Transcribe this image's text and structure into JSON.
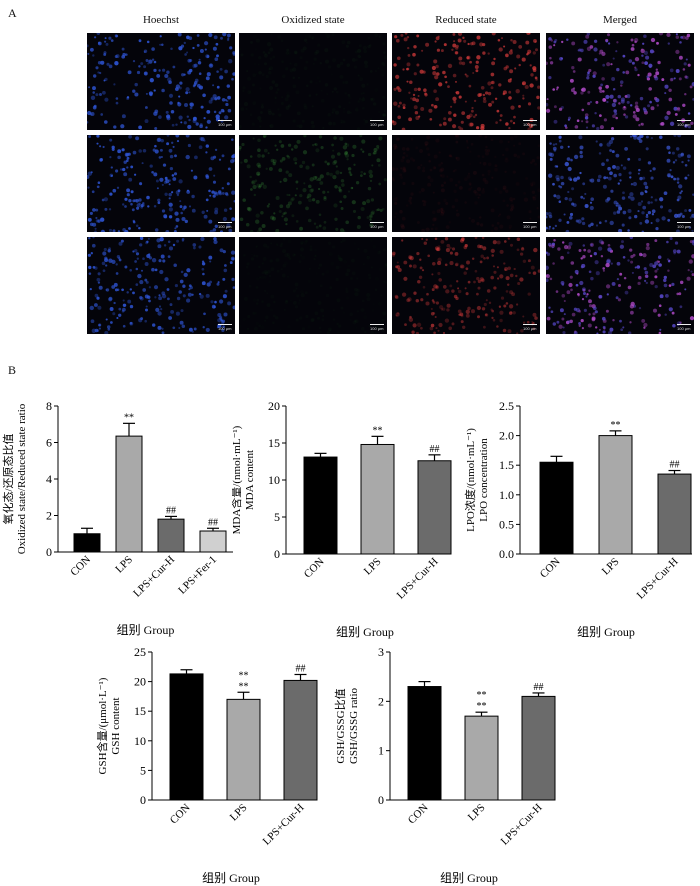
{
  "panel_a_label": "A",
  "panel_b_label": "B",
  "micro": {
    "columns": [
      "Hoechst",
      "Oxidized state",
      "Reduced state",
      "Merged"
    ],
    "scale_bar": "100 μm",
    "channel_colors": {
      "hoechst": "#2f56d8",
      "oxidized": "#3c9a3c",
      "reduced": "#d23a3a",
      "merged": "#a448c8"
    }
  },
  "chart_data": [
    {
      "type": "bar",
      "categories": [
        "CON",
        "LPS",
        "LPS+Cur-H",
        "LPS+Fer-1"
      ],
      "values": [
        1.0,
        6.35,
        1.8,
        1.15
      ],
      "errors": [
        0.3,
        0.7,
        0.15,
        0.15
      ],
      "marks": [
        "",
        "**",
        "##",
        "##"
      ],
      "ylabel_cn": "氧化态/还原态比值",
      "ylabel_en": "Oxidized state/Reduced state ratio",
      "xlabel": "组别 Group",
      "ylim": [
        0,
        8
      ],
      "yticks": [
        "0",
        "2",
        "4",
        "6",
        "8"
      ],
      "colors": [
        "#000000",
        "#a9a9a9",
        "#6b6b6b",
        "#d0d0d0"
      ]
    },
    {
      "type": "bar",
      "categories": [
        "CON",
        "LPS",
        "LPS+Cur-H"
      ],
      "values": [
        13.1,
        14.8,
        12.6
      ],
      "errors": [
        0.5,
        1.1,
        0.8
      ],
      "marks": [
        "",
        "**",
        "##"
      ],
      "ylabel_cn": "MDA含量/(nmol·mL⁻¹)",
      "ylabel_en": "MDA content",
      "xlabel": "组别 Group",
      "ylim": [
        0,
        20
      ],
      "yticks": [
        "0",
        "5",
        "10",
        "15",
        "20"
      ],
      "colors": [
        "#000000",
        "#a9a9a9",
        "#6b6b6b"
      ]
    },
    {
      "type": "bar",
      "categories": [
        "CON",
        "LPS",
        "LPS+Cur-H"
      ],
      "values": [
        1.55,
        2.0,
        1.35
      ],
      "errors": [
        0.1,
        0.08,
        0.06
      ],
      "marks": [
        "",
        "**",
        "##"
      ],
      "ylabel_cn": "LPO浓度/(nmol·mL⁻¹)",
      "ylabel_en": "LPO concentration",
      "xlabel": "组别 Group",
      "ylim": [
        0,
        2.5
      ],
      "yticks": [
        "0.0",
        "0.5",
        "1.0",
        "1.5",
        "2.0",
        "2.5"
      ],
      "colors": [
        "#000000",
        "#a9a9a9",
        "#6b6b6b"
      ]
    },
    {
      "type": "bar",
      "categories": [
        "CON",
        "LPS",
        "LPS+Cur-H"
      ],
      "values": [
        21.3,
        17.0,
        20.2
      ],
      "errors": [
        0.7,
        1.2,
        1.0
      ],
      "marks": [
        "",
        "**",
        "##"
      ],
      "extra_mark_lps": "**",
      "ylabel_cn": "GSH含量/(μmol·L⁻¹)",
      "ylabel_en": "GSH content",
      "xlabel": "组别 Group",
      "ylim": [
        0,
        25
      ],
      "yticks": [
        "0",
        "5",
        "10",
        "15",
        "20",
        "25"
      ],
      "colors": [
        "#000000",
        "#a9a9a9",
        "#6b6b6b"
      ]
    },
    {
      "type": "bar",
      "categories": [
        "CON",
        "LPS",
        "LPS+Cur-H"
      ],
      "values": [
        2.3,
        1.7,
        2.1
      ],
      "errors": [
        0.1,
        0.08,
        0.07
      ],
      "marks": [
        "",
        "**",
        "##"
      ],
      "extra_mark_lps": "**",
      "ylabel_cn": "GSH/GSSG比值",
      "ylabel_en": "GSH/GSSG ratio",
      "xlabel": "组别 Group",
      "ylim": [
        0,
        3
      ],
      "yticks": [
        "0",
        "1",
        "2",
        "3"
      ],
      "colors": [
        "#000000",
        "#a9a9a9",
        "#6b6b6b"
      ]
    }
  ]
}
